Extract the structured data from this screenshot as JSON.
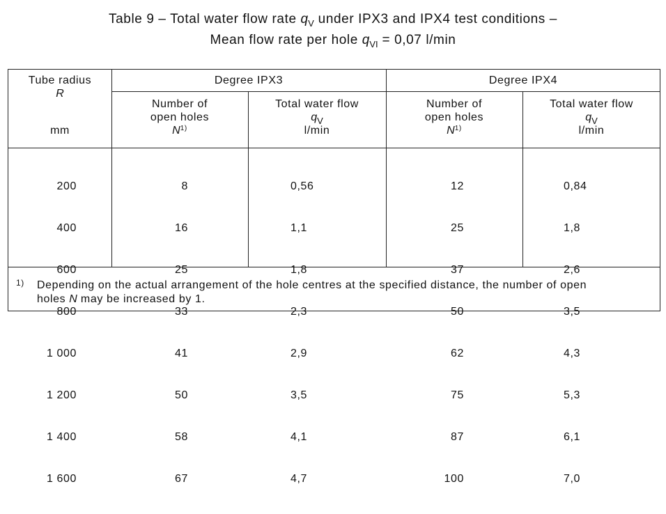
{
  "title": {
    "line1_prefix": "Table 9 – Total water flow rate ",
    "line1_var": "q",
    "line1_sub": "V",
    "line1_suffix": " under IPX3 and IPX4 test conditions –",
    "line2_prefix": "Mean flow rate per hole ",
    "line2_var": "q",
    "line2_sub": "VI",
    "line2_suffix": " = 0,07 l/min"
  },
  "header": {
    "tube_radius": "Tube radius",
    "tube_radius_symbol": "R",
    "tube_radius_unit": "mm",
    "degree_ipx3": "Degree IPX3",
    "degree_ipx4": "Degree IPX4",
    "holes_line1": "Number of",
    "holes_line2": "open holes",
    "holes_symbol": "N",
    "holes_note": "1)",
    "flow_line1": "Total water flow",
    "flow_symbol": "q",
    "flow_sub": "V",
    "flow_unit": "l/min"
  },
  "rows": {
    "radius": [
      "200",
      "400",
      "600",
      "800",
      "1 000",
      "1 200",
      "1 400",
      "1 600"
    ],
    "ipx3_holes": [
      "8",
      "16",
      "25",
      "33",
      "41",
      "50",
      "58",
      "67"
    ],
    "ipx3_flow": [
      "0,56",
      "1,1",
      "1,8",
      "2,3",
      "2,9",
      "3,5",
      "4,1",
      "4,7"
    ],
    "ipx4_holes": [
      "12",
      "25",
      "37",
      "50",
      "62",
      "75",
      "87",
      "100"
    ],
    "ipx4_flow": [
      "0,84",
      "1,8",
      "2,6",
      "3,5",
      "4,3",
      "5,3",
      "6,1",
      "7,0"
    ]
  },
  "footnote": {
    "marker": "1)",
    "line1": "Depending on the actual arrangement of the hole centres at the specified distance, the number of open",
    "line2_prefix": "holes ",
    "line2_var": "N",
    "line2_suffix": " may be increased by 1."
  }
}
